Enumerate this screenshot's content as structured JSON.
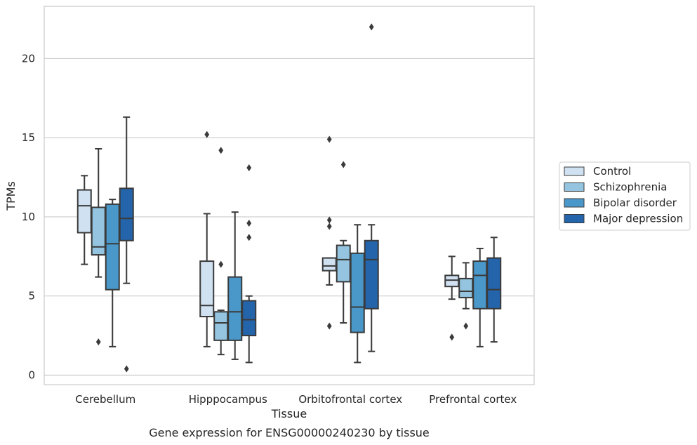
{
  "chart_data": {
    "type": "box",
    "caption": "Gene expression for ENSG00000240230 by tissue",
    "xlabel": "Tissue",
    "ylabel": "TPMs",
    "ylim": [
      -0.6,
      23.3
    ],
    "yticks": [
      0,
      5,
      10,
      15,
      20
    ],
    "grid": "horizontal",
    "legend_position": "right",
    "categories": [
      "Cerebellum",
      "Hipppocampus",
      "Orbitofrontal cortex",
      "Prefrontal cortex"
    ],
    "series": [
      {
        "name": "Control",
        "color": "#d0e1f2",
        "boxes": [
          {
            "whislo": 7.0,
            "q1": 9.0,
            "med": 10.7,
            "q3": 11.7,
            "whishi": 12.6,
            "fliers": []
          },
          {
            "whislo": 1.8,
            "q1": 3.7,
            "med": 4.4,
            "q3": 7.2,
            "whishi": 10.2,
            "fliers": [
              15.2
            ]
          },
          {
            "whislo": 5.7,
            "q1": 6.6,
            "med": 6.9,
            "q3": 7.4,
            "whishi": 7.4,
            "fliers": [
              14.9,
              9.8,
              9.4,
              3.1
            ]
          },
          {
            "whislo": 4.8,
            "q1": 5.6,
            "med": 6.0,
            "q3": 6.3,
            "whishi": 7.5,
            "fliers": [
              2.4
            ]
          }
        ]
      },
      {
        "name": "Schizophrenia",
        "color": "#94c4df",
        "boxes": [
          {
            "whislo": 6.2,
            "q1": 7.6,
            "med": 8.1,
            "q3": 10.6,
            "whishi": 14.3,
            "fliers": [
              2.1
            ]
          },
          {
            "whislo": 1.3,
            "q1": 2.2,
            "med": 3.3,
            "q3": 4.0,
            "whishi": 4.1,
            "fliers": [
              14.2,
              7.0
            ]
          },
          {
            "whislo": 3.3,
            "q1": 5.9,
            "med": 7.3,
            "q3": 8.2,
            "whishi": 8.5,
            "fliers": [
              13.3
            ]
          },
          {
            "whislo": 4.2,
            "q1": 4.9,
            "med": 5.3,
            "q3": 6.1,
            "whishi": 7.1,
            "fliers": [
              3.1
            ]
          }
        ]
      },
      {
        "name": "Bipolar disorder",
        "color": "#4a98c9",
        "boxes": [
          {
            "whislo": 1.8,
            "q1": 5.4,
            "med": 8.3,
            "q3": 10.8,
            "whishi": 11.1,
            "fliers": []
          },
          {
            "whislo": 1.0,
            "q1": 2.2,
            "med": 4.0,
            "q3": 6.2,
            "whishi": 10.3,
            "fliers": []
          },
          {
            "whislo": 0.8,
            "q1": 2.7,
            "med": 4.3,
            "q3": 7.7,
            "whishi": 9.5,
            "fliers": []
          },
          {
            "whislo": 1.8,
            "q1": 4.2,
            "med": 6.3,
            "q3": 7.2,
            "whishi": 8.0,
            "fliers": []
          }
        ]
      },
      {
        "name": "Major depression",
        "color": "#2464ab",
        "boxes": [
          {
            "whislo": 5.8,
            "q1": 8.5,
            "med": 9.9,
            "q3": 11.8,
            "whishi": 16.3,
            "fliers": [
              0.4
            ]
          },
          {
            "whislo": 0.8,
            "q1": 2.5,
            "med": 3.5,
            "q3": 4.7,
            "whishi": 5.0,
            "fliers": [
              13.1,
              9.6,
              8.7
            ]
          },
          {
            "whislo": 1.5,
            "q1": 4.2,
            "med": 7.3,
            "q3": 8.5,
            "whishi": 9.5,
            "fliers": [
              22.0
            ]
          },
          {
            "whislo": 2.1,
            "q1": 4.2,
            "med": 5.4,
            "q3": 7.4,
            "whishi": 8.7,
            "fliers": []
          }
        ]
      }
    ]
  }
}
